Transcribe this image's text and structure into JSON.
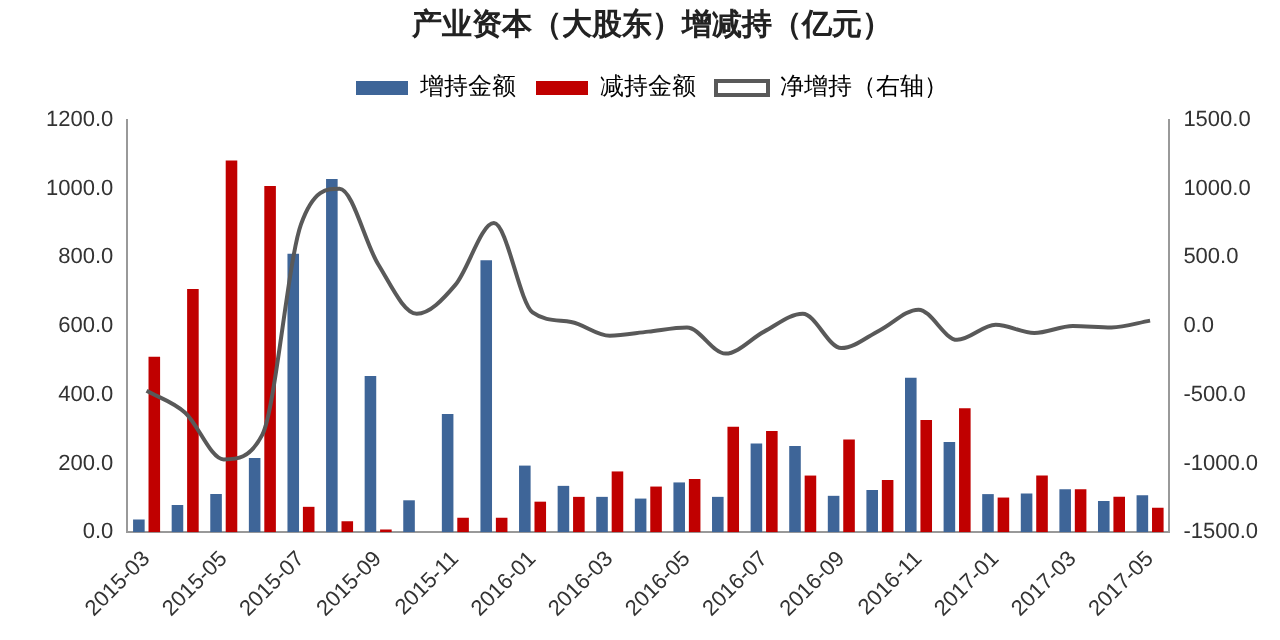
{
  "chart_data": {
    "type": "bar",
    "title": "产业资本（大股东）增减持（亿元）",
    "categories": [
      "2015-03",
      null,
      "2015-05",
      null,
      "2015-07",
      null,
      "2015-09",
      null,
      "2015-11",
      null,
      "2016-01",
      null,
      "2016-03",
      null,
      "2016-05",
      null,
      "2016-07",
      null,
      "2016-09",
      null,
      "2016-11",
      null,
      "2017-01",
      null,
      "2017-03",
      null,
      "2017-05"
    ],
    "series": [
      {
        "name": "增持金额",
        "color": "#3e6598",
        "values": [
          37,
          79,
          111,
          216,
          811,
          1028,
          455,
          93,
          344,
          792,
          194,
          135,
          103,
          98,
          145,
          103,
          258,
          251,
          106,
          123,
          450,
          263,
          111,
          113,
          125,
          91,
          108
        ]
      },
      {
        "name": "减持金额",
        "color": "#c00000",
        "values": [
          511,
          708,
          1082,
          1008,
          74,
          32,
          8,
          0,
          42,
          42,
          89,
          103,
          177,
          133,
          155,
          307,
          295,
          165,
          270,
          152,
          327,
          361,
          101,
          165,
          125,
          103,
          71
        ]
      },
      {
        "name": "净增持（右轴）",
        "type": "line",
        "axis": "y2",
        "color": "#595959",
        "values": [
          -470,
          -630,
          -970,
          -790,
          740,
          1000,
          450,
          90,
          300,
          750,
          100,
          30,
          -70,
          -40,
          -10,
          -200,
          -40,
          90,
          -160,
          -30,
          120,
          -100,
          10,
          -50,
          0,
          -10,
          40
        ]
      }
    ],
    "ylim": [
      0,
      1200
    ],
    "yticks": [
      {
        "value": 0,
        "label": "0.0"
      },
      {
        "value": 200,
        "label": "200.0"
      },
      {
        "value": 400,
        "label": "400.0"
      },
      {
        "value": 600,
        "label": "600.0"
      },
      {
        "value": 800,
        "label": "800.0"
      },
      {
        "value": 1000,
        "label": "1000.0"
      },
      {
        "value": 1200,
        "label": "1200.0"
      }
    ],
    "y2lim": [
      -1500,
      1500
    ],
    "y2ticks": [
      {
        "value": -1500,
        "label": "-1500.0"
      },
      {
        "value": -1000,
        "label": "-1000.0"
      },
      {
        "value": -500,
        "label": "-500.0"
      },
      {
        "value": 0,
        "label": "0.0"
      },
      {
        "value": 500,
        "label": "500.0"
      },
      {
        "value": 1000,
        "label": "1000.0"
      },
      {
        "value": 1500,
        "label": "1500.0"
      }
    ],
    "legend": "top",
    "marker": "none"
  }
}
